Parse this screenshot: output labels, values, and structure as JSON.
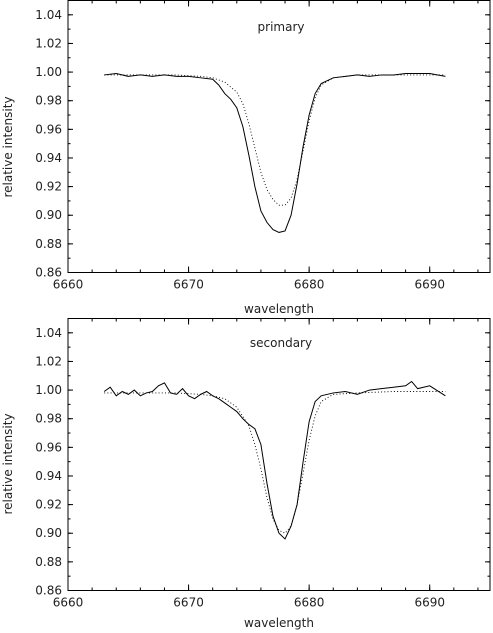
{
  "chart_data": [
    {
      "type": "line",
      "title": "primary",
      "xlabel": "wavelength",
      "ylabel": "relative intensity",
      "xlim": [
        6660,
        6695
      ],
      "ylim": [
        0.86,
        1.05
      ],
      "x_ticks": [
        6660,
        6670,
        6680,
        6690
      ],
      "x_tick_labels": [
        "6660",
        "6670",
        "6680",
        "6690"
      ],
      "y_ticks": [
        0.86,
        0.88,
        0.9,
        0.92,
        0.94,
        0.96,
        0.98,
        1.0,
        1.02,
        1.04
      ],
      "y_tick_labels": [
        "0.86",
        "0.88",
        "0.90",
        "0.92",
        "0.94",
        "0.96",
        "0.98",
        "1.00",
        "1.02",
        "1.04"
      ],
      "grid": false,
      "series": [
        {
          "style": "solid",
          "x": [
            6663.0,
            6664.0,
            6665.0,
            6666.0,
            6667.0,
            6668.0,
            6669.0,
            6670.0,
            6671.0,
            6672.0,
            6672.5,
            6673.0,
            6673.5,
            6674.0,
            6674.5,
            6675.0,
            6675.5,
            6676.0,
            6676.5,
            6677.0,
            6677.5,
            6678.0,
            6678.5,
            6679.0,
            6679.5,
            6680.0,
            6680.5,
            6681.0,
            6682.0,
            6683.0,
            6684.0,
            6685.0,
            6686.0,
            6687.0,
            6688.0,
            6689.0,
            6690.0,
            6691.3
          ],
          "y": [
            0.998,
            0.999,
            0.997,
            0.998,
            0.997,
            0.998,
            0.997,
            0.997,
            0.996,
            0.995,
            0.991,
            0.985,
            0.981,
            0.975,
            0.962,
            0.942,
            0.92,
            0.903,
            0.895,
            0.89,
            0.888,
            0.889,
            0.9,
            0.922,
            0.948,
            0.97,
            0.985,
            0.992,
            0.996,
            0.997,
            0.998,
            0.997,
            0.998,
            0.998,
            0.999,
            0.999,
            0.999,
            0.997
          ]
        },
        {
          "style": "dotted",
          "x": [
            6663.0,
            6666.0,
            6669.0,
            6671.0,
            6672.0,
            6673.0,
            6674.0,
            6674.5,
            6675.0,
            6675.5,
            6676.0,
            6676.5,
            6677.0,
            6677.5,
            6678.0,
            6678.5,
            6679.0,
            6679.5,
            6680.0,
            6680.5,
            6681.0,
            6682.0,
            6684.0,
            6687.0,
            6691.3
          ],
          "y": [
            0.998,
            0.998,
            0.998,
            0.997,
            0.996,
            0.993,
            0.986,
            0.978,
            0.964,
            0.947,
            0.93,
            0.918,
            0.911,
            0.907,
            0.907,
            0.912,
            0.925,
            0.945,
            0.966,
            0.982,
            0.991,
            0.996,
            0.998,
            0.998,
            0.998
          ]
        }
      ]
    },
    {
      "type": "line",
      "title": "secondary",
      "xlabel": "wavelength",
      "ylabel": "relative intensity",
      "xlim": [
        6660,
        6695
      ],
      "ylim": [
        0.86,
        1.05
      ],
      "x_ticks": [
        6660,
        6670,
        6680,
        6690
      ],
      "x_tick_labels": [
        "6660",
        "6670",
        "6680",
        "6690"
      ],
      "y_ticks": [
        0.86,
        0.88,
        0.9,
        0.92,
        0.94,
        0.96,
        0.98,
        1.0,
        1.02,
        1.04
      ],
      "y_tick_labels": [
        "0.86",
        "0.88",
        "0.90",
        "0.92",
        "0.94",
        "0.96",
        "0.98",
        "1.00",
        "1.02",
        "1.04"
      ],
      "grid": false,
      "series": [
        {
          "style": "solid",
          "x": [
            6663.0,
            6663.5,
            6664.0,
            6664.5,
            6665.0,
            6665.5,
            6666.0,
            6666.5,
            6667.0,
            6667.5,
            6668.0,
            6668.5,
            6669.0,
            6669.5,
            6670.0,
            6670.5,
            6671.0,
            6671.5,
            6672.0,
            6672.5,
            6673.0,
            6673.5,
            6674.0,
            6674.5,
            6675.0,
            6675.5,
            6676.0,
            6676.5,
            6677.0,
            6677.5,
            6678.0,
            6678.5,
            6679.0,
            6679.5,
            6680.0,
            6680.5,
            6681.0,
            6682.0,
            6683.0,
            6684.0,
            6685.0,
            6686.0,
            6687.0,
            6688.0,
            6688.5,
            6689.0,
            6690.0,
            6691.3
          ],
          "y": [
            0.999,
            1.002,
            0.996,
            0.999,
            0.997,
            1.0,
            0.996,
            0.998,
            0.999,
            1.003,
            1.005,
            0.998,
            0.997,
            1.001,
            0.996,
            0.994,
            0.997,
            0.999,
            0.996,
            0.994,
            0.991,
            0.988,
            0.985,
            0.98,
            0.976,
            0.973,
            0.962,
            0.935,
            0.912,
            0.9,
            0.896,
            0.905,
            0.92,
            0.95,
            0.978,
            0.992,
            0.996,
            0.998,
            0.999,
            0.997,
            1.0,
            1.001,
            1.002,
            1.003,
            1.006,
            1.001,
            1.003,
            0.996
          ]
        },
        {
          "style": "dotted",
          "x": [
            6663.0,
            6666.0,
            6669.0,
            6671.0,
            6672.0,
            6673.0,
            6674.0,
            6675.0,
            6675.5,
            6676.0,
            6676.5,
            6677.0,
            6677.5,
            6678.0,
            6678.5,
            6679.0,
            6679.5,
            6680.0,
            6680.5,
            6681.0,
            6682.0,
            6684.0,
            6687.0,
            6691.3
          ],
          "y": [
            0.998,
            0.998,
            0.998,
            0.997,
            0.996,
            0.994,
            0.988,
            0.975,
            0.962,
            0.945,
            0.925,
            0.91,
            0.902,
            0.9,
            0.905,
            0.92,
            0.942,
            0.965,
            0.982,
            0.992,
            0.997,
            0.998,
            0.999,
            0.999
          ]
        }
      ]
    }
  ]
}
